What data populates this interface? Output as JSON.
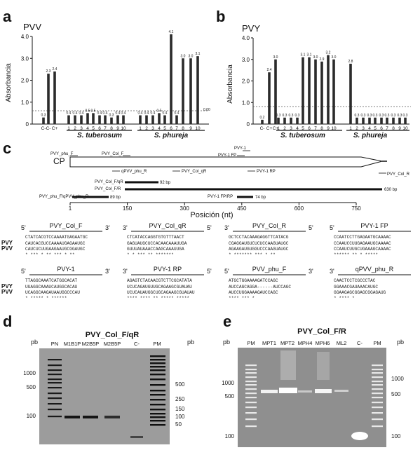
{
  "chart_data": [
    {
      "type": "bar",
      "panel": "a",
      "title": "PVV",
      "ylabel": "Absorbancia",
      "ylim": [
        0,
        4.0
      ],
      "yticks": [
        "0",
        "1.0",
        "2.0",
        "3.0",
        "4.0"
      ],
      "threshold": 0.6,
      "categories": [
        "C-",
        "C-",
        "C+",
        "1",
        "2",
        "3",
        "4",
        "5",
        "6",
        "7",
        "8",
        "9",
        "10",
        "1",
        "2",
        "3",
        "4",
        "5",
        "6",
        "7",
        "8",
        "9",
        "10"
      ],
      "values": [
        0.3,
        2.3,
        2.4,
        0.4,
        0.4,
        0.4,
        0.5,
        0.5,
        0.4,
        0.4,
        0.3,
        0.4,
        0.4,
        0.4,
        0.4,
        0.4,
        0.5,
        0.4,
        4.1,
        0.4,
        3.0,
        3.0,
        3.1
      ],
      "labels": [
        "0.3",
        "2.3",
        "2.4",
        "0.4",
        "0.4",
        "0.4",
        "0.5",
        "0.5",
        "0.4",
        "0.4",
        "0.3",
        "0.4",
        "0.4",
        "0.4",
        "0.4",
        "0.4",
        "0.5",
        "0.4",
        "4.1",
        "0.4",
        "3.0",
        "3.0",
        "3.1"
      ],
      "groups": [
        "S. tuberosum",
        "S. phureja"
      ],
      "extra_label": "0.00"
    },
    {
      "type": "bar",
      "panel": "b",
      "title": "PVY",
      "ylabel": "Absorbancia",
      "ylim": [
        0,
        4.0
      ],
      "yticks": [
        "0",
        "1.0",
        "2.0",
        "3.0",
        "4.0"
      ],
      "threshold": 0.6,
      "categories": [
        "C-",
        "C+",
        "C+",
        "1",
        "2",
        "3",
        "4",
        "5",
        "6",
        "7",
        "8",
        "9",
        "10",
        "1",
        "2",
        "3",
        "4",
        "5",
        "6",
        "7",
        "8",
        "9",
        "10"
      ],
      "values": [
        0.2,
        2.4,
        3.0,
        0.3,
        0.3,
        0.3,
        0.3,
        3.1,
        3.1,
        3.0,
        2.9,
        3.2,
        3.0,
        2.8,
        0.3,
        0.3,
        0.3,
        0.3,
        0.3,
        0.3,
        0.3,
        0.3,
        0.3
      ],
      "labels": [
        "0.2",
        "2.4",
        "3.0",
        "0.3",
        "0.3",
        "0.3",
        "0.3",
        "3.1",
        "3.1",
        "3.0",
        "2.9",
        "3.2",
        "3.0",
        "2.8",
        "0.3",
        "0.3",
        "0.3",
        "0.3",
        "0.3",
        "0.3",
        "0.3",
        "0.3",
        "0.3"
      ],
      "groups": [
        "S. tuberosum",
        "S. phureja"
      ]
    }
  ],
  "panel_letters": {
    "a": "a",
    "b": "b",
    "c": "c",
    "d": "d",
    "e": "e"
  },
  "genome_map": {
    "cp_label": "CP",
    "primers_fwd": [
      "PVY_phu_F",
      "PVY_Col_F",
      "PVY-1",
      "PVY-1 FP"
    ],
    "primers_rev": [
      "qPVV_phu_R",
      "PVY_Col_qR",
      "PVY-1 RP",
      "PVY_Col_R"
    ],
    "amplicons": [
      {
        "name": "PVY_Col_F/qR",
        "size": "92 bp"
      },
      {
        "name": "PVY_Col_F/R",
        "size": "630 bp"
      },
      {
        "name": "PVY_phu_F/qPVV_phu_R",
        "size": "89 bp"
      },
      {
        "name": "PVY-1 FP/RP",
        "size": "74 bp"
      }
    ],
    "axis_ticks": [
      "1",
      "150",
      "300",
      "450",
      "600",
      "750"
    ],
    "axis_label": "Posición (nt)"
  },
  "alignments": [
    {
      "title": "PVY_Col_F",
      "start": "5'",
      "end": "3'",
      "ref": "CTATCACGTCCAAAATGAGAATGC",
      "pvy": "CAUCACGUCCAAAAUGAGAAUGC",
      "pvv": "CAUCUCUUGAAGAAUGCGGAUGC",
      "stars": "* *** *   **  *** * **"
    },
    {
      "title": "PVY_Col_qR",
      "start": "3'",
      "end": "5'",
      "ref": "CTCATACCAGGTGTGTTTAACT",
      "pvy": "GAGUAUGCUCCACAACAAAUUGA",
      "pvv": "GUUUAUAAACCAAGCAAAUUGA",
      "stars": "* *  ***   ** *******"
    },
    {
      "title": "PVY_Col_R",
      "start": "3'",
      "end": "5'",
      "ref": "GCTCCTACAAAGAGGTTCATACG",
      "pvy": "CGAGGAUGUCUCUCCAAGUAUGC",
      "pvv": "AGAAGAUGUGGUCCCAAGUAUGC",
      "stars": "* *******  ***  *  **"
    },
    {
      "title": "PVY-1 FP",
      "start": "5'",
      "end": "3'",
      "ref": "CCAATCCTTGAGAATGCAAAAC",
      "pvy": "CCAAUCCUUGAGAAUGCAAAAC",
      "pvv": "CCAAUCUUGCUGAAAGCAAAAC",
      "stars": "****** **    *  *****"
    },
    {
      "title": "PVY-1",
      "start": "5'",
      "end": "3'",
      "ref": "TTAGGCAAATCATGGCACAT",
      "pvy": "UUAGGCAAAUCAUGGCACAU",
      "pvv": "UCAGGCAAGAUAAUGGCCCAU",
      "stars": "*  *****  *   ******"
    },
    {
      "title": "PVY-1 RP",
      "start": "3'",
      "end": "5'",
      "ref": "AGAGTCTACAACGTCTTCGCATATA",
      "pvy": "UCUCAGAUGUUGCAGAAGCGUAUAU",
      "pvv": "UCUCAUAUGGCUGCAGAAGCGUAUAU",
      "stars": "**** **** ** ***** *****"
    },
    {
      "title": "PVV_phu_F",
      "start": "5'",
      "end": "3'",
      "ref": "ATGCTGGAAAAGATCCAGC",
      "pvy": "AUCCAGCAGGA------AUCCAGC",
      "pvv": "AUCCUGGAAAAGAUCCAGC",
      "stars": "****  *** *"
    },
    {
      "title": "qPVV_phu_R",
      "start": "3'",
      "end": "5'",
      "ref": "CAACTCCTCGCCCTAC",
      "pvy": "GGAAACGAUAAACAUGC",
      "pvv": "GGAAGAGCGGAGCGGAGAUG",
      "stars": "*    ****  *"
    }
  ],
  "row_labels": {
    "pvy": "PVY",
    "pvv": "PVV"
  },
  "gel_d": {
    "title": "PVY_Col_F/qR",
    "unit": "pb",
    "lanes": [
      "PN",
      "M1B1P",
      "M2B5P",
      "M2B5P",
      "C-",
      "PM"
    ],
    "left_markers": [
      "1000",
      "500",
      "100"
    ],
    "right_markers": [
      "500",
      "250",
      "150",
      "100",
      "50"
    ]
  },
  "gel_e": {
    "title": "PVY_Col_F/R",
    "unit": "pb",
    "lanes": [
      "PM",
      "MPT1",
      "MPT2",
      "MPH4",
      "MPH6",
      "ML2",
      "C-",
      "PM"
    ],
    "left_markers": [
      "1000",
      "500",
      "100"
    ],
    "right_markers": [
      "1000",
      "500",
      "100"
    ]
  }
}
